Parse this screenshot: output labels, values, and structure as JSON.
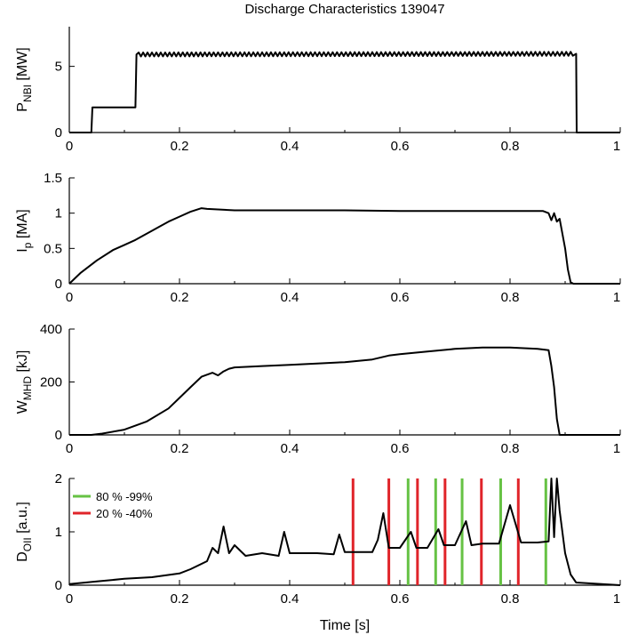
{
  "figure_title": "Discharge Characteristics 139047",
  "xlabel": "Time [s]",
  "chart_data": [
    {
      "type": "line",
      "id": "pnbi",
      "title": "",
      "ylabel_main": "P",
      "ylabel_sub": "NBI",
      "ylabel_unit": "[MW]",
      "xlim": [
        0,
        1
      ],
      "ylim": [
        0,
        8
      ],
      "xticks": [
        0,
        0.2,
        0.4,
        0.6,
        0.8,
        1
      ],
      "xtick_labels": [
        "0",
        "0.2",
        "0.4",
        "0.6",
        "0.8",
        "1"
      ],
      "yticks": [
        0,
        5
      ],
      "ytick_labels": [
        "0",
        "5"
      ],
      "series": [
        {
          "x": [
            0.0,
            0.04,
            0.042,
            0.12,
            0.122,
            0.92,
            0.921,
            1.0
          ],
          "y": [
            0,
            0,
            1.9,
            1.9,
            5.9,
            5.95,
            0,
            0
          ],
          "ripple": {
            "from": 0.122,
            "to": 0.92,
            "amp": 0.15,
            "period": 0.008
          }
        }
      ]
    },
    {
      "type": "line",
      "id": "ip",
      "title": "",
      "ylabel_main": "I",
      "ylabel_sub": "p",
      "ylabel_unit": "[MA]",
      "xlim": [
        0,
        1
      ],
      "ylim": [
        0,
        1.5
      ],
      "xticks": [
        0,
        0.2,
        0.4,
        0.6,
        0.8,
        1
      ],
      "xtick_labels": [
        "0",
        "0.2",
        "0.4",
        "0.6",
        "0.8",
        "1"
      ],
      "yticks": [
        0,
        0.5,
        1,
        1.5
      ],
      "ytick_labels": [
        "0",
        "0.5",
        "1",
        "1.5"
      ],
      "series": [
        {
          "x": [
            0.0,
            0.02,
            0.05,
            0.08,
            0.1,
            0.12,
            0.15,
            0.18,
            0.2,
            0.22,
            0.24,
            0.25,
            0.3,
            0.4,
            0.5,
            0.6,
            0.7,
            0.8,
            0.86,
            0.87,
            0.875,
            0.88,
            0.885,
            0.89,
            0.9,
            0.905,
            0.91,
            0.915,
            1.0
          ],
          "y": [
            0.0,
            0.15,
            0.33,
            0.48,
            0.55,
            0.62,
            0.75,
            0.88,
            0.95,
            1.02,
            1.07,
            1.06,
            1.04,
            1.04,
            1.04,
            1.03,
            1.03,
            1.03,
            1.03,
            1.0,
            0.9,
            1.0,
            0.88,
            0.92,
            0.5,
            0.2,
            0.02,
            0.0,
            0.0
          ]
        }
      ]
    },
    {
      "type": "line",
      "id": "wmhd",
      "title": "",
      "ylabel_main": "W",
      "ylabel_sub": "MHD",
      "ylabel_unit": "[kJ]",
      "xlim": [
        0,
        1
      ],
      "ylim": [
        0,
        400
      ],
      "xticks": [
        0,
        0.2,
        0.4,
        0.6,
        0.8,
        1
      ],
      "xtick_labels": [
        "0",
        "0.2",
        "0.4",
        "0.6",
        "0.8",
        "1"
      ],
      "yticks": [
        0,
        200,
        400
      ],
      "ytick_labels": [
        "0",
        "200",
        "400"
      ],
      "series": [
        {
          "x": [
            0.0,
            0.04,
            0.06,
            0.1,
            0.14,
            0.18,
            0.2,
            0.22,
            0.24,
            0.26,
            0.27,
            0.28,
            0.29,
            0.3,
            0.35,
            0.4,
            0.45,
            0.5,
            0.55,
            0.58,
            0.6,
            0.65,
            0.7,
            0.75,
            0.8,
            0.85,
            0.87,
            0.875,
            0.88,
            0.885,
            0.89,
            1.0
          ],
          "y": [
            0,
            0,
            5,
            20,
            50,
            100,
            140,
            180,
            220,
            235,
            225,
            240,
            250,
            255,
            260,
            265,
            270,
            275,
            285,
            300,
            305,
            315,
            325,
            330,
            330,
            325,
            320,
            260,
            180,
            60,
            0,
            0
          ]
        }
      ]
    },
    {
      "type": "line",
      "id": "doii",
      "title": "",
      "ylabel_main": "D",
      "ylabel_sub": "OII",
      "ylabel_unit": "[a.u.]",
      "xlim": [
        0,
        1
      ],
      "ylim": [
        0,
        2
      ],
      "xticks": [
        0,
        0.2,
        0.4,
        0.6,
        0.8,
        1
      ],
      "xtick_labels": [
        "0",
        "0.2",
        "0.4",
        "0.6",
        "0.8",
        "1"
      ],
      "yticks": [
        0,
        1,
        2
      ],
      "ytick_labels": [
        "0",
        "1",
        "2"
      ],
      "series": [
        {
          "x": [
            0.0,
            0.05,
            0.1,
            0.15,
            0.2,
            0.22,
            0.25,
            0.26,
            0.27,
            0.28,
            0.29,
            0.3,
            0.32,
            0.35,
            0.38,
            0.39,
            0.4,
            0.45,
            0.48,
            0.49,
            0.5,
            0.55,
            0.56,
            0.57,
            0.58,
            0.6,
            0.62,
            0.63,
            0.65,
            0.67,
            0.68,
            0.7,
            0.72,
            0.73,
            0.75,
            0.78,
            0.8,
            0.82,
            0.85,
            0.87,
            0.875,
            0.88,
            0.885,
            0.89,
            0.9,
            0.91,
            0.92,
            1.0
          ],
          "y": [
            0.02,
            0.07,
            0.12,
            0.15,
            0.22,
            0.3,
            0.45,
            0.7,
            0.6,
            1.1,
            0.6,
            0.75,
            0.55,
            0.6,
            0.55,
            1.0,
            0.6,
            0.6,
            0.58,
            0.95,
            0.62,
            0.62,
            0.85,
            1.35,
            0.7,
            0.7,
            1.0,
            0.7,
            0.7,
            1.05,
            0.75,
            0.75,
            1.2,
            0.75,
            0.78,
            0.78,
            1.5,
            0.8,
            0.8,
            0.82,
            2.0,
            0.9,
            2.0,
            1.4,
            0.6,
            0.2,
            0.05,
            0.0
          ]
        }
      ],
      "legend": [
        {
          "label": "80 % -99%",
          "color": "#66c244"
        },
        {
          "label": "20 % -40%",
          "color": "#e0242a"
        }
      ],
      "vlines": [
        {
          "x": 0.515,
          "color": "#e0242a"
        },
        {
          "x": 0.58,
          "color": "#e0242a"
        },
        {
          "x": 0.615,
          "color": "#66c244"
        },
        {
          "x": 0.632,
          "color": "#e0242a"
        },
        {
          "x": 0.665,
          "color": "#66c244"
        },
        {
          "x": 0.682,
          "color": "#e0242a"
        },
        {
          "x": 0.713,
          "color": "#66c244"
        },
        {
          "x": 0.748,
          "color": "#e0242a"
        },
        {
          "x": 0.783,
          "color": "#66c244"
        },
        {
          "x": 0.815,
          "color": "#e0242a"
        },
        {
          "x": 0.865,
          "color": "#66c244"
        }
      ]
    }
  ]
}
